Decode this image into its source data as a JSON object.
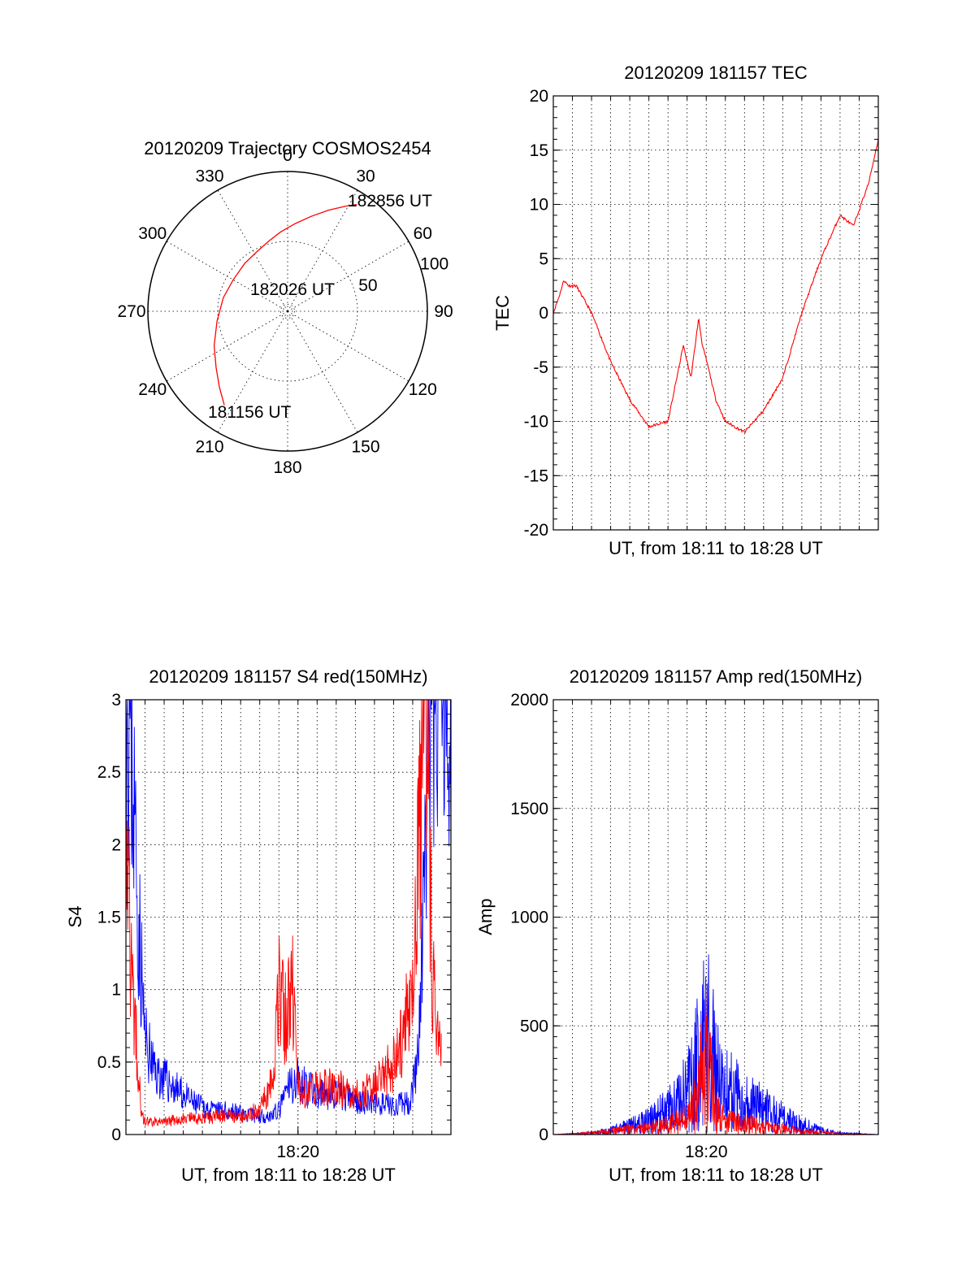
{
  "colors": {
    "red": "#ff0000",
    "blue": "#0000ff",
    "ink": "#000000"
  },
  "chart_data": [
    {
      "id": "polar",
      "type": "polar-trajectory",
      "title": "20120209 Trajectory COSMOS2454",
      "angle_labels": [
        "0",
        "30",
        "60",
        "90",
        "120",
        "150",
        "180",
        "210",
        "240",
        "270",
        "300",
        "330"
      ],
      "angle_values": [
        0,
        30,
        60,
        90,
        120,
        150,
        180,
        210,
        240,
        270,
        300,
        330
      ],
      "radial_labels": [
        "50",
        "100"
      ],
      "radial_values": [
        50,
        100
      ],
      "annotations": [
        "182856 UT",
        "182026 UT",
        "181156 UT"
      ],
      "trajectory": {
        "color": "#ff0000",
        "azimuth_deg": [
          214,
          222,
          232,
          245,
          262,
          282,
          300,
          318,
          333,
          345,
          355,
          5,
          14,
          22,
          29,
          33
        ],
        "radius": [
          81,
          73,
          65,
          58,
          51,
          47,
          45,
          46,
          48,
          52,
          57,
          63,
          70,
          78,
          86,
          91
        ]
      }
    },
    {
      "id": "tec",
      "type": "line",
      "title": "20120209 181157 TEC",
      "xlabel": "UT, from 18:11 to 18:28 UT",
      "ylabel": "TEC",
      "x_range_minutes": [
        0,
        17
      ],
      "ylim": [
        -20,
        20
      ],
      "yticks": [
        "20",
        "15",
        "10",
        "5",
        "0",
        "-5",
        "-10",
        "-15",
        "-20"
      ],
      "ytick_values": [
        20,
        15,
        10,
        5,
        0,
        -5,
        -10,
        -15,
        -20
      ],
      "series": [
        {
          "color": "#ff0000",
          "x": [
            0,
            0.3,
            0.55,
            0.8,
            1.2,
            2.0,
            3.0,
            4.0,
            5.0,
            6.0,
            6.8,
            7.2,
            7.6,
            7.8,
            8.1,
            8.5,
            9.0,
            10.0,
            11.0,
            12.0,
            13.0,
            14.0,
            15.0,
            15.7,
            16.5,
            17.0
          ],
          "y": [
            0,
            1.5,
            3.0,
            2.5,
            2.5,
            0,
            -4.5,
            -8,
            -10.5,
            -10,
            -3,
            -6,
            -0.5,
            -3,
            -5,
            -8,
            -10,
            -11,
            -9,
            -6,
            0,
            5,
            9,
            8,
            12,
            16
          ]
        }
      ]
    },
    {
      "id": "s4",
      "type": "line",
      "title": "20120209 181157 S4 red(150MHz)",
      "xlabel": "UT, from 18:11 to 18:28 UT",
      "ylabel": "S4",
      "x_range_minutes": [
        0,
        17
      ],
      "xtick_label": "18:20",
      "xtick_minute": 9,
      "ylim": [
        0,
        3
      ],
      "yticks": [
        "3",
        "2.5",
        "2",
        "1.5",
        "1",
        "0.5",
        "0"
      ],
      "ytick_values": [
        3,
        2.5,
        2,
        1.5,
        1,
        0.5,
        0
      ],
      "series": [
        {
          "color": "#0000ff",
          "x": [
            0,
            0.3,
            0.6,
            1.0,
            1.5,
            2.5,
            3.5,
            4.5,
            5.5,
            6.5,
            7.5,
            8.0,
            8.5,
            9.0,
            10.0,
            11.0,
            12.0,
            13.0,
            14.0,
            14.8,
            15.3,
            15.6,
            16.0,
            16.5,
            17.0
          ],
          "y": [
            3,
            2.5,
            1.5,
            0.6,
            0.4,
            0.3,
            0.2,
            0.15,
            0.15,
            0.12,
            0.12,
            0.15,
            0.3,
            0.35,
            0.25,
            0.25,
            0.22,
            0.2,
            0.18,
            0.2,
            0.5,
            1.5,
            2.8,
            3,
            2.8
          ]
        },
        {
          "color": "#ff0000",
          "x": [
            0,
            0.3,
            0.6,
            0.8,
            1.0,
            2.0,
            3.0,
            4.0,
            5.0,
            6.0,
            7.0,
            7.7,
            8.0,
            8.4,
            8.7,
            9.0,
            9.5,
            10.0,
            11.0,
            12.0,
            13.0,
            14.0,
            14.5,
            15.0,
            15.4,
            15.7,
            16.0,
            16.5
          ],
          "y": [
            2.2,
            1.0,
            0.5,
            0.15,
            0.08,
            0.08,
            0.1,
            0.1,
            0.12,
            0.12,
            0.15,
            0.4,
            0.9,
            0.7,
            1.0,
            0.3,
            0.25,
            0.3,
            0.3,
            0.25,
            0.3,
            0.45,
            0.6,
            1.0,
            2.0,
            3.0,
            1.0,
            0.5
          ]
        }
      ]
    },
    {
      "id": "amp",
      "type": "line",
      "title": "20120209 181157 Amp red(150MHz)",
      "xlabel": "UT, from 18:11 to 18:28 UT",
      "ylabel": "Amp",
      "x_range_minutes": [
        0,
        17
      ],
      "xtick_label": "18:20",
      "xtick_minute": 8,
      "ylim": [
        0,
        2000
      ],
      "yticks": [
        "2000",
        "1500",
        "1000",
        "500",
        "0"
      ],
      "ytick_values": [
        2000,
        1500,
        1000,
        500,
        0
      ],
      "series": [
        {
          "color": "#0000ff",
          "x": [
            0,
            1,
            2,
            3,
            4,
            5,
            6,
            7,
            7.5,
            8,
            8.5,
            9,
            10,
            11,
            12,
            13,
            14,
            15,
            17
          ],
          "y": [
            0,
            5,
            10,
            30,
            60,
            100,
            180,
            300,
            500,
            800,
            450,
            350,
            250,
            180,
            120,
            70,
            30,
            10,
            0
          ]
        },
        {
          "color": "#ff0000",
          "x": [
            0,
            1,
            2,
            3,
            4,
            5,
            6,
            7,
            7.5,
            8,
            8.5,
            9,
            10,
            11,
            12,
            13,
            14,
            15,
            17
          ],
          "y": [
            0,
            5,
            15,
            25,
            40,
            50,
            70,
            120,
            250,
            600,
            150,
            100,
            80,
            60,
            40,
            25,
            15,
            5,
            0
          ]
        }
      ]
    }
  ]
}
